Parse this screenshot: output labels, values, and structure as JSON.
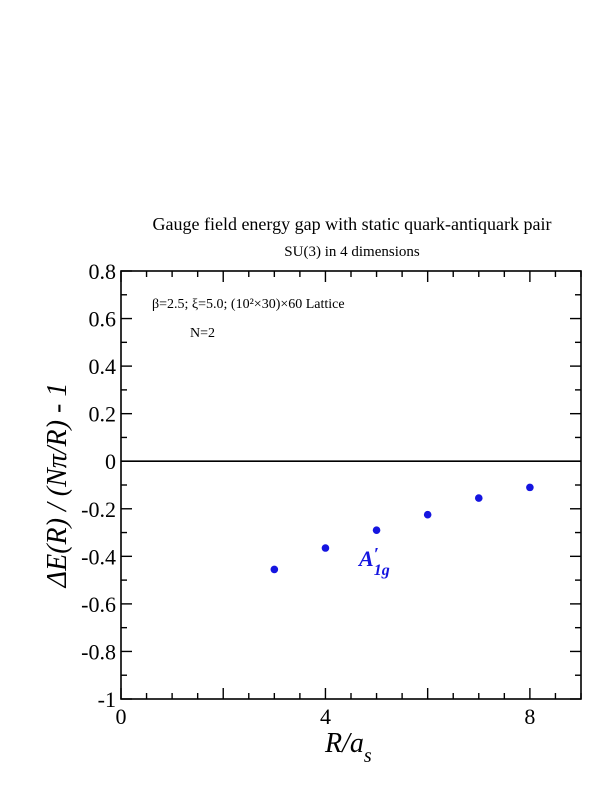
{
  "chart_data": {
    "type": "scatter",
    "title": "Gauge field energy gap with static quark-antiquark pair",
    "subtitle": "SU(3) in 4 dimensions",
    "annotation_lines": [
      "β=2.5;  ξ=5.0; (10²×30)×60 Lattice",
      "N=2"
    ],
    "xlabel": "R/a",
    "xlabel_sub": "s",
    "ylabel": "ΔE(R) / (Nπ/R) - 1",
    "xlim": [
      0,
      9
    ],
    "ylim": [
      -1,
      0.8
    ],
    "x_ticks": [
      0,
      4,
      8
    ],
    "x_tick_labels": [
      "0",
      "4",
      "8"
    ],
    "y_ticks": [
      0.8,
      0.6,
      0.4,
      0.2,
      0,
      -0.2,
      -0.4,
      -0.6,
      -0.8,
      -1
    ],
    "y_tick_labels": [
      "0.8",
      "0.6",
      "0.4",
      "0.2",
      "0",
      "-0.2",
      "-0.4",
      "-0.6",
      "-0.8",
      "-1"
    ],
    "zero_line": true,
    "grid": false,
    "series": [
      {
        "label_main": "A",
        "label_prime": "′",
        "label_sub": "1g",
        "color": "#1515e0",
        "x": [
          3,
          4,
          5,
          6,
          7,
          8
        ],
        "y": [
          -0.455,
          -0.365,
          -0.29,
          -0.225,
          -0.155,
          -0.11
        ]
      }
    ]
  }
}
